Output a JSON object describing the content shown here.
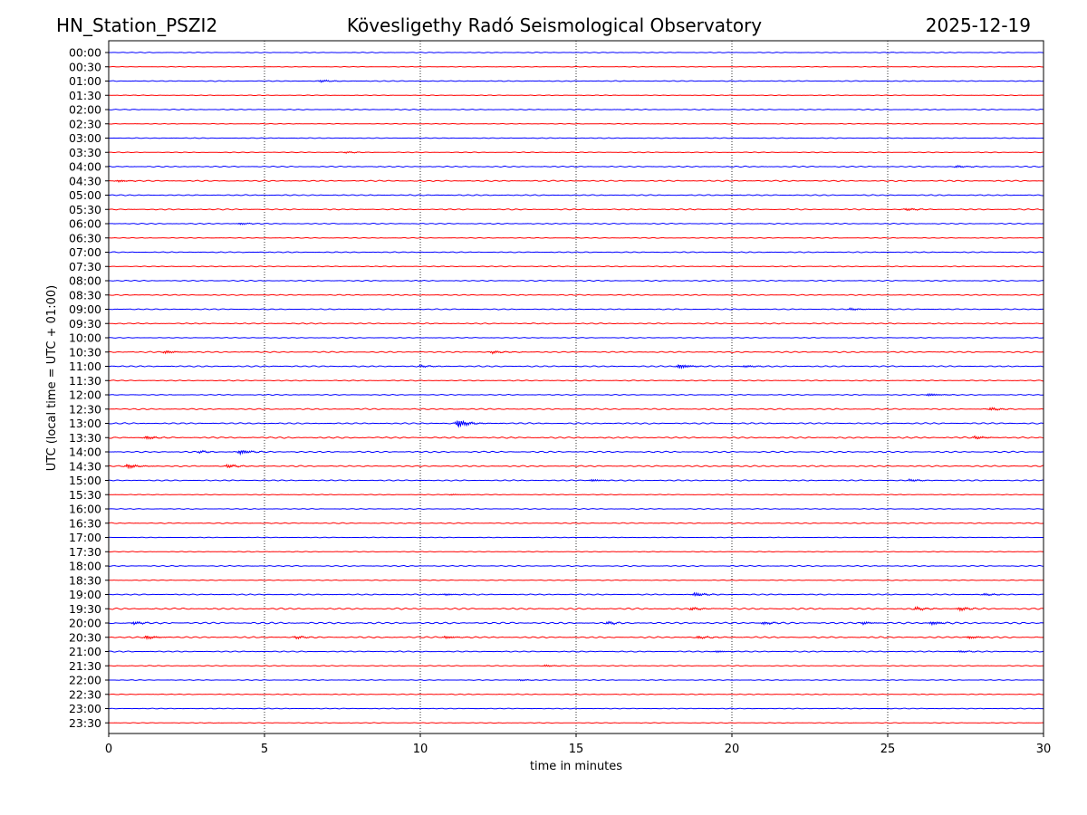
{
  "header": {
    "station": "HN_Station_PSZI2",
    "observatory": "Kövesligethy Radó Seismological Observatory",
    "date": "2025-12-19"
  },
  "chart_data": {
    "type": "line",
    "title": "Kövesligethy Radó Seismological Observatory",
    "xlabel": "time in minutes",
    "ylabel": "UTC (local time = UTC + 01:00)",
    "xlim": [
      0,
      30
    ],
    "x_ticks": [
      "0",
      "5",
      "10",
      "15",
      "20",
      "25",
      "30"
    ],
    "grid_x": true,
    "rows": [
      "00:00",
      "00:30",
      "01:00",
      "01:30",
      "02:00",
      "02:30",
      "03:00",
      "03:30",
      "04:00",
      "04:30",
      "05:00",
      "05:30",
      "06:00",
      "06:30",
      "07:00",
      "07:30",
      "08:00",
      "08:30",
      "09:00",
      "09:30",
      "10:00",
      "10:30",
      "11:00",
      "11:30",
      "12:00",
      "12:30",
      "13:00",
      "13:30",
      "14:00",
      "14:30",
      "15:00",
      "15:30",
      "16:00",
      "16:30",
      "17:00",
      "17:30",
      "18:00",
      "18:30",
      "19:00",
      "19:30",
      "20:00",
      "20:30",
      "21:00",
      "21:30",
      "22:00",
      "22:30",
      "23:00",
      "23:30"
    ],
    "row_colors": [
      "#0000ff",
      "#ff0000"
    ],
    "row_activity": [
      0.3,
      0.2,
      0.35,
      0.25,
      0.35,
      0.25,
      0.3,
      0.3,
      0.45,
      0.5,
      0.45,
      0.45,
      0.4,
      0.3,
      0.4,
      0.35,
      0.4,
      0.4,
      0.4,
      0.45,
      0.3,
      0.5,
      0.5,
      0.4,
      0.35,
      0.5,
      0.55,
      0.6,
      0.6,
      0.55,
      0.45,
      0.3,
      0.3,
      0.4,
      0.25,
      0.3,
      0.4,
      0.3,
      0.45,
      0.65,
      0.7,
      0.6,
      0.45,
      0.35,
      0.3,
      0.35,
      0.3,
      0.25
    ],
    "events": [
      {
        "row": "01:00",
        "minute": 6.8,
        "amp": 0.6
      },
      {
        "row": "03:30",
        "minute": 7.6,
        "amp": 0.4
      },
      {
        "row": "04:00",
        "minute": 27.2,
        "amp": 0.6
      },
      {
        "row": "04:30",
        "minute": 0.3,
        "amp": 0.6
      },
      {
        "row": "05:30",
        "minute": 25.6,
        "amp": 0.6
      },
      {
        "row": "06:00",
        "minute": 4.2,
        "amp": 0.5
      },
      {
        "row": "09:00",
        "minute": 23.8,
        "amp": 0.6
      },
      {
        "row": "10:30",
        "minute": 1.8,
        "amp": 0.8
      },
      {
        "row": "10:30",
        "minute": 12.3,
        "amp": 0.7
      },
      {
        "row": "11:00",
        "minute": 18.3,
        "amp": 1.3
      },
      {
        "row": "11:00",
        "minute": 10.0,
        "amp": 0.6
      },
      {
        "row": "11:00",
        "minute": 20.4,
        "amp": 0.6
      },
      {
        "row": "12:00",
        "minute": 26.3,
        "amp": 0.7
      },
      {
        "row": "12:30",
        "minute": 28.3,
        "amp": 0.8
      },
      {
        "row": "13:00",
        "minute": 11.2,
        "amp": 2.2
      },
      {
        "row": "13:30",
        "minute": 1.2,
        "amp": 0.9
      },
      {
        "row": "13:30",
        "minute": 27.8,
        "amp": 0.8
      },
      {
        "row": "14:00",
        "minute": 4.2,
        "amp": 1.2
      },
      {
        "row": "14:00",
        "minute": 2.9,
        "amp": 0.6
      },
      {
        "row": "14:30",
        "minute": 0.6,
        "amp": 1.2
      },
      {
        "row": "14:30",
        "minute": 3.8,
        "amp": 0.9
      },
      {
        "row": "15:00",
        "minute": 15.5,
        "amp": 0.6
      },
      {
        "row": "15:00",
        "minute": 25.7,
        "amp": 0.6
      },
      {
        "row": "15:30",
        "minute": 11.0,
        "amp": 0.3
      },
      {
        "row": "19:00",
        "minute": 18.8,
        "amp": 1.0
      },
      {
        "row": "19:00",
        "minute": 10.8,
        "amp": 0.5
      },
      {
        "row": "19:00",
        "minute": 28.1,
        "amp": 0.6
      },
      {
        "row": "19:30",
        "minute": 25.9,
        "amp": 0.9
      },
      {
        "row": "19:30",
        "minute": 27.3,
        "amp": 1.0
      },
      {
        "row": "19:30",
        "minute": 18.7,
        "amp": 0.8
      },
      {
        "row": "20:00",
        "minute": 0.8,
        "amp": 0.8
      },
      {
        "row": "20:00",
        "minute": 16.0,
        "amp": 0.8
      },
      {
        "row": "20:00",
        "minute": 21.0,
        "amp": 0.8
      },
      {
        "row": "20:00",
        "minute": 26.4,
        "amp": 0.9
      },
      {
        "row": "20:00",
        "minute": 24.2,
        "amp": 0.7
      },
      {
        "row": "20:30",
        "minute": 1.2,
        "amp": 1.0
      },
      {
        "row": "20:30",
        "minute": 6.0,
        "amp": 0.7
      },
      {
        "row": "20:30",
        "minute": 10.8,
        "amp": 0.7
      },
      {
        "row": "20:30",
        "minute": 27.6,
        "amp": 0.7
      },
      {
        "row": "20:30",
        "minute": 18.9,
        "amp": 0.7
      },
      {
        "row": "21:00",
        "minute": 19.5,
        "amp": 0.5
      },
      {
        "row": "21:00",
        "minute": 27.3,
        "amp": 0.5
      },
      {
        "row": "21:30",
        "minute": 14.0,
        "amp": 0.5
      },
      {
        "row": "22:00",
        "minute": 13.2,
        "amp": 0.4
      }
    ]
  }
}
